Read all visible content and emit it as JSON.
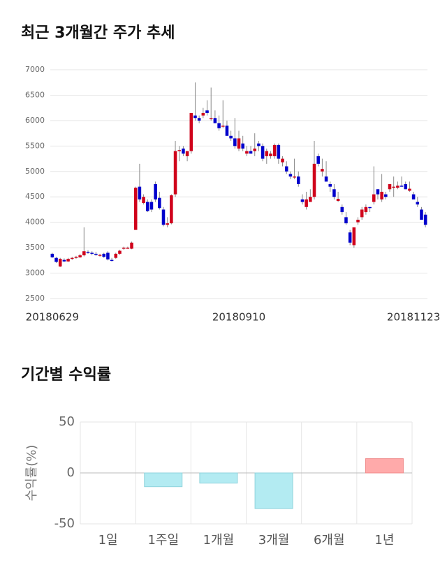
{
  "chart_data": [
    {
      "type": "candlestick",
      "title": "최근 3개월간 주가 추세",
      "categories": [
        "20180629",
        null,
        null,
        null,
        null,
        null,
        null,
        null,
        null,
        null,
        null,
        null,
        null,
        null,
        null,
        null,
        null,
        null,
        null,
        null,
        null,
        null,
        null,
        null,
        null,
        null,
        null,
        null,
        null,
        null,
        null,
        null,
        null,
        null,
        null,
        null,
        null,
        null,
        null,
        null,
        null,
        null,
        null,
        null,
        null,
        null,
        null,
        "20180910",
        null,
        null,
        null,
        null,
        null,
        null,
        null,
        null,
        null,
        null,
        null,
        null,
        null,
        null,
        null,
        null,
        null,
        null,
        null,
        null,
        null,
        null,
        null,
        null,
        null,
        null,
        null,
        null,
        null,
        null,
        null,
        null,
        null,
        null,
        null,
        null,
        null,
        null,
        null,
        null,
        null,
        null,
        null,
        "20181123",
        null,
        null,
        null
      ],
      "open": [
        3380,
        3300,
        3130,
        3260,
        3230,
        3280,
        3300,
        3310,
        3350,
        3420,
        3400,
        3380,
        3340,
        3380,
        3400,
        3260,
        3300,
        3380,
        3480,
        3500,
        3480,
        3850,
        4700,
        4380,
        4400,
        4400,
        4750,
        4480,
        4250,
        3950,
        3980,
        4550,
        5400,
        5450,
        5300,
        5400,
        6100,
        6050,
        6100,
        6200,
        6050,
        6050,
        5950,
        5900,
        5900,
        5700,
        5650,
        5450,
        5550,
        5350,
        5400,
        5400,
        5550,
        5500,
        5300,
        5300,
        5300,
        5520,
        5180,
        5100,
        4950,
        4900,
        4900,
        4450,
        4300,
        4400,
        4500,
        5300,
        5000,
        4900,
        4750,
        4650,
        4420,
        4300,
        4100,
        3800,
        3550,
        4000,
        4100,
        4200,
        4300,
        4400,
        4650,
        4450,
        4550,
        4650,
        4700,
        4680,
        4720,
        4750,
        4620,
        4550,
        4400,
        4250,
        4150
      ],
      "high": [
        3400,
        3320,
        3300,
        3290,
        3300,
        3320,
        3340,
        3380,
        3900,
        3450,
        3430,
        3420,
        3380,
        3400,
        3430,
        3300,
        3400,
        3460,
        3520,
        3520,
        3620,
        4700,
        5150,
        4550,
        4450,
        4450,
        4800,
        4600,
        4300,
        4100,
        4550,
        5600,
        5500,
        5500,
        5400,
        6150,
        6750,
        6100,
        6250,
        6400,
        6650,
        6200,
        6100,
        6400,
        6000,
        5800,
        6050,
        5800,
        5700,
        5500,
        5500,
        5750,
        5600,
        5550,
        5450,
        5400,
        5550,
        5550,
        5300,
        5200,
        5000,
        5250,
        5000,
        4550,
        4600,
        4650,
        5600,
        5350,
        5250,
        5200,
        4800,
        4750,
        4600,
        4350,
        4200,
        3850,
        3900,
        4100,
        4300,
        4350,
        4300,
        5100,
        4650,
        4950,
        4600,
        4750,
        4900,
        4800,
        4900,
        4800,
        4800,
        4600,
        4500,
        4300,
        4200
      ],
      "low": [
        3300,
        3200,
        3120,
        3220,
        3220,
        3260,
        3280,
        3300,
        3330,
        3380,
        3350,
        3340,
        3320,
        3300,
        3250,
        3230,
        3280,
        3360,
        3460,
        3480,
        3470,
        3850,
        4400,
        4350,
        4200,
        4200,
        4400,
        4250,
        3920,
        3900,
        3960,
        4500,
        5200,
        5300,
        5200,
        5350,
        6000,
        5950,
        6050,
        6100,
        6000,
        5950,
        5800,
        5850,
        5700,
        5600,
        5450,
        5400,
        5400,
        5300,
        5350,
        5300,
        5400,
        5200,
        5150,
        5250,
        5250,
        5150,
        5100,
        4950,
        4850,
        4850,
        4700,
        4350,
        4250,
        4400,
        4450,
        5100,
        4900,
        4800,
        4600,
        4450,
        4400,
        4150,
        3950,
        3550,
        3500,
        3950,
        4050,
        4150,
        4200,
        4350,
        4450,
        4400,
        4450,
        4600,
        4500,
        4650,
        4700,
        4650,
        4600,
        4450,
        4300,
        4050,
        3900
      ],
      "close": [
        3310,
        3220,
        3280,
        3230,
        3280,
        3300,
        3320,
        3350,
        3430,
        3400,
        3380,
        3360,
        3360,
        3320,
        3270,
        3250,
        3380,
        3440,
        3500,
        3500,
        3600,
        4680,
        4450,
        4500,
        4220,
        4250,
        4450,
        4280,
        3950,
        3980,
        4530,
        5400,
        5420,
        5350,
        5400,
        6150,
        6050,
        6000,
        6150,
        6150,
        6050,
        5950,
        5850,
        5900,
        5700,
        5650,
        5500,
        5650,
        5450,
        5400,
        5350,
        5450,
        5500,
        5250,
        5400,
        5350,
        5520,
        5250,
        5250,
        5000,
        4900,
        4900,
        4750,
        4400,
        4450,
        4500,
        5150,
        5150,
        5050,
        4800,
        4700,
        4500,
        4460,
        4200,
        3980,
        3600,
        3900,
        4050,
        4250,
        4300,
        4280,
        4550,
        4550,
        4600,
        4500,
        4750,
        4700,
        4720,
        4700,
        4650,
        4660,
        4450,
        4350,
        4050,
        3950
      ],
      "up_color": "#d0021b",
      "down_color": "#0000cc",
      "ylim": [
        2500,
        7000
      ],
      "yticks": [
        2500,
        3000,
        3500,
        4000,
        4500,
        5000,
        5500,
        6000,
        6500,
        7000
      ],
      "grid": true
    },
    {
      "type": "bar",
      "title": "기간별 수익률",
      "y_label": "수익률(%)",
      "categories": [
        "1일",
        "1주일",
        "1개월",
        "3개월",
        "6개월",
        "1년"
      ],
      "values": [
        0,
        -13.5,
        -10,
        -35,
        0,
        14
      ],
      "positive_color": "#ffaaaa",
      "negative_color": "#b3ebf2",
      "ylim": [
        -50,
        50
      ],
      "yticks": [
        -50,
        0,
        50
      ],
      "grid": true
    }
  ]
}
